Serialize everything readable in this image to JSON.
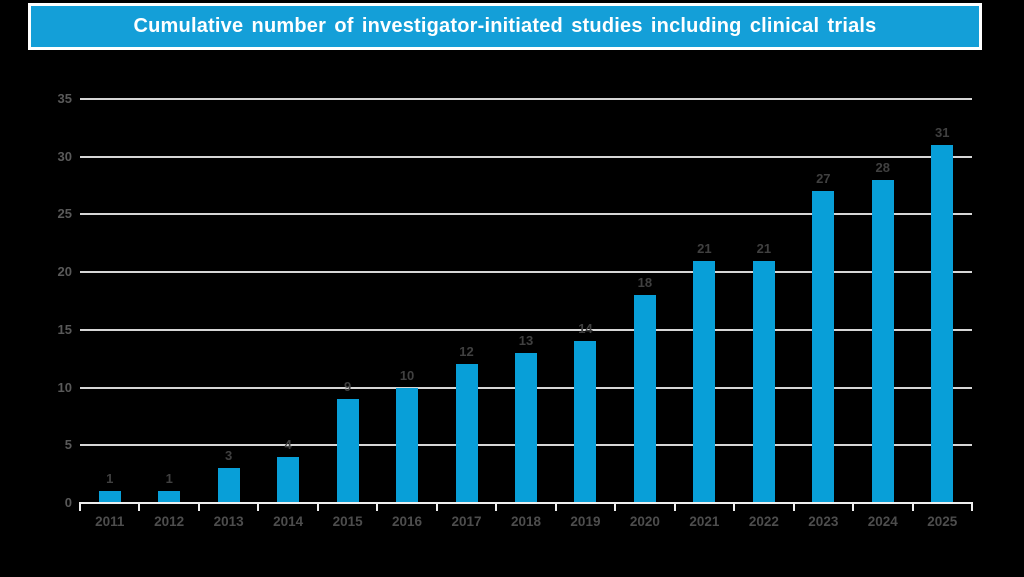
{
  "banner": {
    "title": "Cumulative number of investigator-initiated studies including clinical trials"
  },
  "colors": {
    "background": "#000000",
    "bar": "#089fd8",
    "banner_bg": "#149fd8",
    "banner_border": "#ffffff",
    "gridline": "#d6d6d6",
    "axis_line": "#eeeeee",
    "y_label": "#595959",
    "x_label": "#4d4d4d",
    "value_label": "#404040",
    "title_text": "#ffffff"
  },
  "chart_data": {
    "type": "bar",
    "title": "Cumulative number of investigator-initiated studies including clinical trials",
    "categories": [
      "2011",
      "2012",
      "2013",
      "2014",
      "2015",
      "2016",
      "2017",
      "2018",
      "2019",
      "2020",
      "2021",
      "2022",
      "2023",
      "2024",
      "2025"
    ],
    "values": [
      1,
      1,
      3,
      4,
      9,
      10,
      12,
      13,
      14,
      18,
      21,
      21,
      27,
      28,
      31
    ],
    "xlabel": "",
    "ylabel": "",
    "ylim": [
      0,
      35
    ],
    "yticks": [
      0,
      5,
      10,
      15,
      20,
      25,
      30,
      35
    ],
    "grid": true,
    "legend": "none",
    "data_labels": true
  }
}
